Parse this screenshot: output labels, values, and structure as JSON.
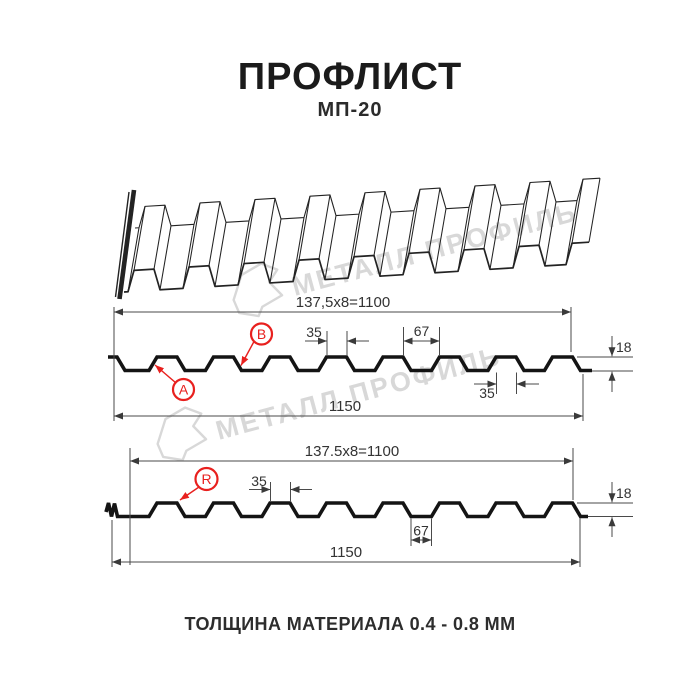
{
  "page": {
    "title": "ПРОФЛИСТ",
    "subtitle": "МП-20",
    "footer": "ТОЛЩИНА МАТЕРИАЛА 0.4 - 0.8 ММ"
  },
  "watermark": {
    "text": "МЕТАЛЛ ПРОФИЛЬ"
  },
  "colors": {
    "accent_red": "#e8201e",
    "line_black": "#141414",
    "watermark_gray": "#d8d8d8"
  },
  "profile_top": {
    "pitch_dim": "137,5x8=1100",
    "rib_top_width_dim": "35",
    "valley_width_dim": "67",
    "height_dim": "18",
    "rib_bottom_width_dim": "35",
    "overall_width_dim": "1150",
    "callout_a": "A",
    "callout_b": "B"
  },
  "profile_bottom": {
    "pitch_dim": "137.5x8=1100",
    "rib_top_width_dim": "35",
    "valley_width_dim": "67",
    "height_dim": "18",
    "overall_width_dim": "1150",
    "callout_r": "R"
  }
}
